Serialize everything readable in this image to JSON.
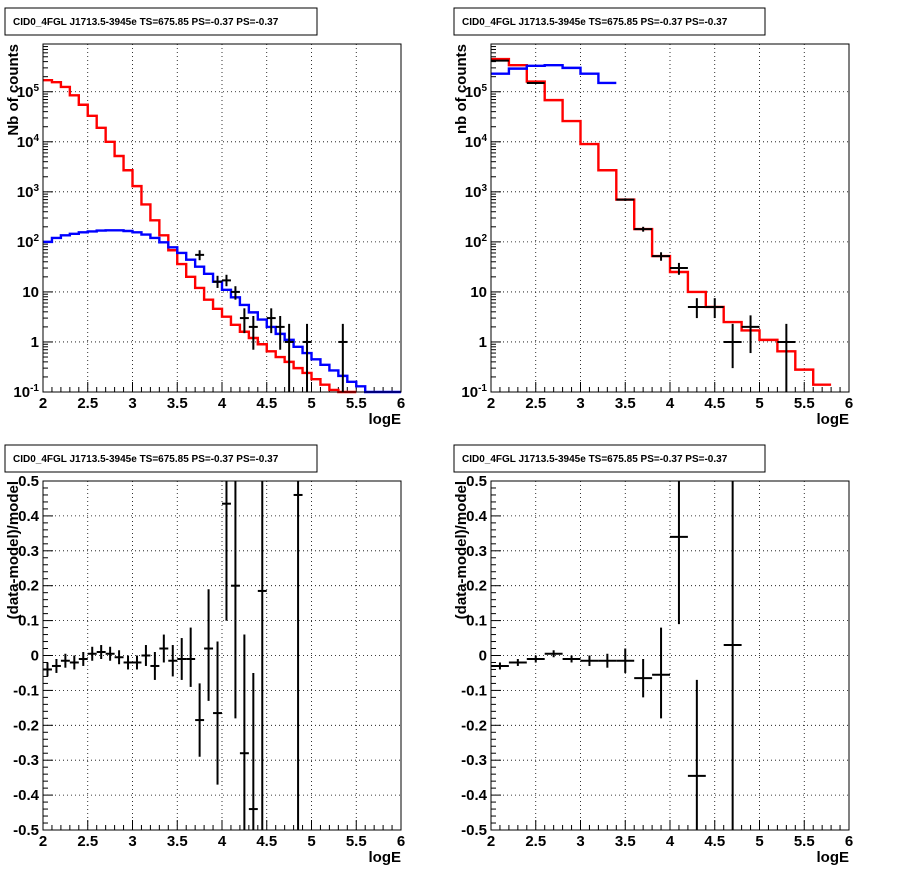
{
  "chart_data": [
    {
      "type": "line",
      "title": "CID0_4FGL J1713.5-3945e TS=675.85 PS=-0.37 PS=-0.37",
      "xlabel": "logE",
      "ylabel": "Nb of counts",
      "xlim": [
        2,
        6
      ],
      "ylim": [
        0.1,
        900000
      ],
      "yscale": "log",
      "grid": true,
      "xticks": [
        "2",
        "2.5",
        "3",
        "3.5",
        "4",
        "4.5",
        "5",
        "5.5",
        "6"
      ],
      "yticks": [
        {
          "v": 0.1,
          "label": "10⁻¹",
          "exp": "-1"
        },
        {
          "v": 1,
          "label": "1"
        },
        {
          "v": 10,
          "label": "10"
        },
        {
          "v": 100,
          "label": "10²",
          "exp": "2"
        },
        {
          "v": 1000,
          "label": "10³",
          "exp": "3"
        },
        {
          "v": 10000,
          "label": "10⁴",
          "exp": "4"
        },
        {
          "v": 100000,
          "label": "10⁵",
          "exp": "5"
        }
      ],
      "bin_edges": [
        2.0,
        2.1,
        2.2,
        2.3,
        2.4,
        2.5,
        2.6,
        2.7,
        2.8,
        2.9,
        3.0,
        3.1,
        3.2,
        3.3,
        3.4,
        3.5,
        3.6,
        3.7,
        3.8,
        3.9,
        4.0,
        4.1,
        4.2,
        4.3,
        4.4,
        4.5,
        4.6,
        4.7,
        4.8,
        4.9,
        5.0,
        5.1,
        5.2,
        5.3,
        5.4,
        5.5,
        5.6,
        5.7,
        5.8,
        5.9,
        6.0
      ],
      "series": [
        {
          "color": "#ff0000",
          "role": "total model",
          "values": [
            170000,
            155000,
            125000,
            85000,
            55000,
            33000,
            19000,
            10000,
            5200,
            2700,
            1300,
            560,
            270,
            135,
            68,
            36,
            20,
            12,
            7,
            4.6,
            3.2,
            2.2,
            1.6,
            1.2,
            0.9,
            0.65,
            0.5,
            0.4,
            0.3,
            0.24,
            0.18,
            0.14,
            0.11,
            0.09,
            0.07,
            0,
            0,
            0,
            0,
            0
          ]
        },
        {
          "color": "#0000ff",
          "role": "source model",
          "values": [
            100,
            120,
            135,
            145,
            155,
            162,
            168,
            170,
            170,
            165,
            155,
            140,
            120,
            98,
            78,
            60,
            44,
            32,
            23,
            16,
            11,
            7.8,
            5.5,
            3.9,
            2.8,
            2.0,
            1.45,
            1.1,
            0.8,
            0.6,
            0.45,
            0.35,
            0.27,
            0.21,
            0.16,
            0.13,
            0.1,
            0.1,
            0.1,
            0.1
          ]
        }
      ],
      "points": [
        {
          "x": 3.75,
          "y": 55,
          "ylo": 43,
          "yhi": 68
        },
        {
          "x": 3.95,
          "y": 16,
          "ylo": 12,
          "yhi": 21
        },
        {
          "x": 4.05,
          "y": 17,
          "ylo": 13,
          "yhi": 22
        },
        {
          "x": 4.15,
          "y": 10,
          "ylo": 7,
          "yhi": 13
        },
        {
          "x": 4.25,
          "y": 3,
          "ylo": 1.5,
          "yhi": 4.7
        },
        {
          "x": 4.35,
          "y": 2,
          "ylo": 0.7,
          "yhi": 3.3
        },
        {
          "x": 4.55,
          "y": 3,
          "ylo": 1.5,
          "yhi": 4.7
        },
        {
          "x": 4.65,
          "y": 2,
          "ylo": 0.7,
          "yhi": 3.3
        },
        {
          "x": 4.75,
          "y": 1,
          "ylo": 0.1,
          "yhi": 2.3
        },
        {
          "x": 4.95,
          "y": 1,
          "ylo": 0.1,
          "yhi": 2.3
        },
        {
          "x": 5.35,
          "y": 1,
          "ylo": 0.1,
          "yhi": 2.3
        }
      ]
    },
    {
      "type": "line",
      "title": "CID0_4FGL J1713.5-3945e TS=675.85 PS=-0.37 PS=-0.37",
      "xlabel": "logE",
      "ylabel": "nb of counts",
      "xlim": [
        2,
        6
      ],
      "ylim": [
        0.1,
        900000
      ],
      "yscale": "log",
      "grid": true,
      "xticks": [
        "2",
        "2.5",
        "3",
        "3.5",
        "4",
        "4.5",
        "5",
        "5.5",
        "6"
      ],
      "yticks": [
        {
          "v": 0.1,
          "label": "10⁻¹",
          "exp": "-1"
        },
        {
          "v": 1,
          "label": "1"
        },
        {
          "v": 10,
          "label": "10"
        },
        {
          "v": 100,
          "label": "10²",
          "exp": "2"
        },
        {
          "v": 1000,
          "label": "10³",
          "exp": "3"
        },
        {
          "v": 10000,
          "label": "10⁴",
          "exp": "4"
        },
        {
          "v": 100000,
          "label": "10⁵",
          "exp": "5"
        }
      ],
      "bin_edges": [
        2.0,
        2.2,
        2.4,
        2.6,
        2.8,
        3.0,
        3.2,
        3.4,
        3.6,
        3.8,
        4.0,
        4.2,
        4.4,
        4.6,
        4.8,
        5.0,
        5.2,
        5.4,
        5.6,
        5.8,
        6.0
      ],
      "series": [
        {
          "color": "#ff0000",
          "role": "total model",
          "values": [
            450000,
            340000,
            160000,
            68000,
            26000,
            9000,
            2700,
            700,
            180,
            52,
            25,
            10,
            5,
            2.5,
            1.7,
            1.1,
            0.65,
            0.28,
            0.14,
            0
          ]
        },
        {
          "color": "#0000ff",
          "role": "source model",
          "values": [
            230000,
            290000,
            330000,
            340000,
            300000,
            230000,
            150000,
            0,
            0,
            0,
            0,
            0,
            0,
            0,
            0,
            0,
            0,
            0,
            0,
            0
          ]
        }
      ],
      "points": [
        {
          "x": 2.1,
          "y": 420000,
          "ylo": 410000,
          "yhi": 430000
        },
        {
          "x": 2.5,
          "y": 150000,
          "ylo": 148000,
          "yhi": 152000
        },
        {
          "x": 3.5,
          "y": 700,
          "ylo": 660,
          "yhi": 740
        },
        {
          "x": 3.7,
          "y": 180,
          "ylo": 160,
          "yhi": 200
        },
        {
          "x": 3.9,
          "y": 52,
          "ylo": 42,
          "yhi": 62
        },
        {
          "x": 4.1,
          "y": 30,
          "ylo": 22,
          "yhi": 38
        },
        {
          "x": 4.3,
          "y": 5,
          "ylo": 3,
          "yhi": 7.5
        },
        {
          "x": 4.5,
          "y": 5,
          "ylo": 3,
          "yhi": 7.5
        },
        {
          "x": 4.7,
          "y": 1,
          "ylo": 0.3,
          "yhi": 2.3
        },
        {
          "x": 4.9,
          "y": 2,
          "ylo": 0.6,
          "yhi": 3.4
        },
        {
          "x": 5.3,
          "y": 1,
          "ylo": 0.1,
          "yhi": 2.3
        }
      ]
    },
    {
      "type": "scatter",
      "title": "CID0_4FGL J1713.5-3945e TS=675.85 PS=-0.37 PS=-0.37",
      "xlabel": "logE",
      "ylabel": "(data-model)/model",
      "xlim": [
        2,
        6
      ],
      "ylim": [
        -0.5,
        0.5
      ],
      "grid": true,
      "xticks": [
        "2",
        "2.5",
        "3",
        "3.5",
        "4",
        "4.5",
        "5",
        "5.5",
        "6"
      ],
      "yticks": [
        "-0.5",
        "-0.4",
        "-0.3",
        "-0.2",
        "-0.1",
        "0",
        "0.1",
        "0.2",
        "0.3",
        "0.4",
        "0.5"
      ],
      "bin_width": 0.1,
      "points": [
        {
          "x": 2.05,
          "y": -0.04,
          "ylo": -0.06,
          "yhi": -0.02
        },
        {
          "x": 2.15,
          "y": -0.03,
          "ylo": -0.05,
          "yhi": -0.01
        },
        {
          "x": 2.25,
          "y": -0.015,
          "ylo": -0.035,
          "yhi": 0.005
        },
        {
          "x": 2.35,
          "y": -0.02,
          "ylo": -0.04,
          "yhi": 0.0
        },
        {
          "x": 2.45,
          "y": -0.01,
          "ylo": -0.03,
          "yhi": 0.01
        },
        {
          "x": 2.55,
          "y": 0.005,
          "ylo": -0.015,
          "yhi": 0.025
        },
        {
          "x": 2.65,
          "y": 0.01,
          "ylo": -0.01,
          "yhi": 0.03
        },
        {
          "x": 2.75,
          "y": 0.005,
          "ylo": -0.015,
          "yhi": 0.025
        },
        {
          "x": 2.85,
          "y": -0.005,
          "ylo": -0.025,
          "yhi": 0.015
        },
        {
          "x": 2.95,
          "y": -0.02,
          "ylo": -0.04,
          "yhi": 0.0
        },
        {
          "x": 3.05,
          "y": -0.02,
          "ylo": -0.04,
          "yhi": 0.0
        },
        {
          "x": 3.15,
          "y": 0.0,
          "ylo": -0.03,
          "yhi": 0.03
        },
        {
          "x": 3.25,
          "y": -0.03,
          "ylo": -0.07,
          "yhi": 0.01
        },
        {
          "x": 3.35,
          "y": 0.02,
          "ylo": -0.02,
          "yhi": 0.06
        },
        {
          "x": 3.45,
          "y": -0.015,
          "ylo": -0.06,
          "yhi": 0.03
        },
        {
          "x": 3.55,
          "y": -0.01,
          "ylo": -0.07,
          "yhi": 0.05
        },
        {
          "x": 3.65,
          "y": -0.01,
          "ylo": -0.09,
          "yhi": 0.08
        },
        {
          "x": 3.75,
          "y": -0.185,
          "ylo": -0.29,
          "yhi": -0.08
        },
        {
          "x": 3.85,
          "y": 0.02,
          "ylo": -0.13,
          "yhi": 0.19
        },
        {
          "x": 3.95,
          "y": -0.165,
          "ylo": -0.37,
          "yhi": 0.04
        },
        {
          "x": 4.05,
          "y": 0.435,
          "ylo": 0.1,
          "yhi": 0.5
        },
        {
          "x": 4.15,
          "y": 0.2,
          "ylo": -0.18,
          "yhi": 0.5
        },
        {
          "x": 4.25,
          "y": -0.28,
          "ylo": -0.5,
          "yhi": 0.06
        },
        {
          "x": 4.35,
          "y": -0.44,
          "ylo": -0.5,
          "yhi": -0.05
        },
        {
          "x": 4.45,
          "y": 0.185,
          "ylo": -0.5,
          "yhi": 0.5
        },
        {
          "x": 4.85,
          "y": 0.46,
          "ylo": -0.5,
          "yhi": 0.5
        }
      ]
    },
    {
      "type": "scatter",
      "title": "CID0_4FGL J1713.5-3945e TS=675.85 PS=-0.37 PS=-0.37",
      "xlabel": "logE",
      "ylabel": "(data-model)/model",
      "xlim": [
        2,
        6
      ],
      "ylim": [
        -0.5,
        0.5
      ],
      "grid": true,
      "xticks": [
        "2",
        "2.5",
        "3",
        "3.5",
        "4",
        "4.5",
        "5",
        "5.5",
        "6"
      ],
      "yticks": [
        "-0.5",
        "-0.4",
        "-0.3",
        "-0.2",
        "-0.1",
        "0",
        "0.1",
        "0.2",
        "0.3",
        "0.4",
        "0.5"
      ],
      "bin_width": 0.2,
      "points": [
        {
          "x": 2.1,
          "y": -0.03,
          "ylo": -0.04,
          "yhi": -0.02
        },
        {
          "x": 2.3,
          "y": -0.02,
          "ylo": -0.03,
          "yhi": -0.01
        },
        {
          "x": 2.5,
          "y": -0.01,
          "ylo": -0.02,
          "yhi": 0.0
        },
        {
          "x": 2.7,
          "y": 0.005,
          "ylo": -0.005,
          "yhi": 0.015
        },
        {
          "x": 2.9,
          "y": -0.01,
          "ylo": -0.02,
          "yhi": 0.0
        },
        {
          "x": 3.1,
          "y": -0.015,
          "ylo": -0.03,
          "yhi": 0.0
        },
        {
          "x": 3.3,
          "y": -0.015,
          "ylo": -0.035,
          "yhi": 0.005
        },
        {
          "x": 3.5,
          "y": -0.015,
          "ylo": -0.05,
          "yhi": 0.02
        },
        {
          "x": 3.7,
          "y": -0.065,
          "ylo": -0.12,
          "yhi": -0.01
        },
        {
          "x": 3.9,
          "y": -0.055,
          "ylo": -0.18,
          "yhi": 0.08
        },
        {
          "x": 4.1,
          "y": 0.34,
          "ylo": 0.09,
          "yhi": 0.5
        },
        {
          "x": 4.3,
          "y": -0.345,
          "ylo": -0.5,
          "yhi": -0.07
        },
        {
          "x": 4.7,
          "y": 0.03,
          "ylo": -0.5,
          "yhi": 0.5
        }
      ]
    }
  ]
}
